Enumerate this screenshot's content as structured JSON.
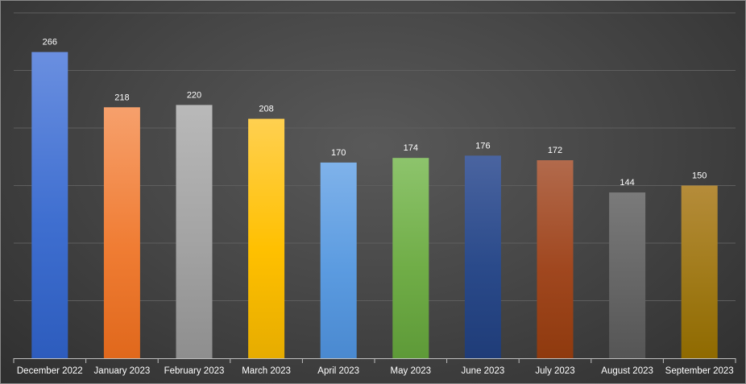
{
  "chart_data": {
    "type": "bar",
    "title": "",
    "xlabel": "",
    "ylabel": "",
    "categories": [
      "December 2022",
      "January 2023",
      "February 2023",
      "March 2023",
      "April 2023",
      "May 2023",
      "June 2023",
      "July 2023",
      "August 2023",
      "September 2023"
    ],
    "values": [
      266,
      218,
      220,
      208,
      170,
      174,
      176,
      172,
      144,
      150
    ],
    "ylim": [
      0,
      300
    ],
    "grid": true,
    "legend": "none",
    "data_labels": true,
    "bar_colors": [
      [
        "#6a8fe0",
        "#3f6fd0",
        "#2d5cbd"
      ],
      [
        "#f6a06c",
        "#f07d34",
        "#e0681c"
      ],
      [
        "#b9b9b9",
        "#a3a3a3",
        "#8e8e8e"
      ],
      [
        "#ffd050",
        "#ffc000",
        "#e6ac00"
      ],
      [
        "#7fb2ea",
        "#5b9be0",
        "#4a89d0"
      ],
      [
        "#8dc46c",
        "#70ad47",
        "#5e9a38"
      ],
      [
        "#4a64a0",
        "#2a4a8a",
        "#1f3c78"
      ],
      [
        "#b26a4c",
        "#a0471f",
        "#8f3a0e"
      ],
      [
        "#7a7a7a",
        "#666666",
        "#555555"
      ],
      [
        "#b58c3a",
        "#a07a18",
        "#8f6a00"
      ]
    ]
  }
}
